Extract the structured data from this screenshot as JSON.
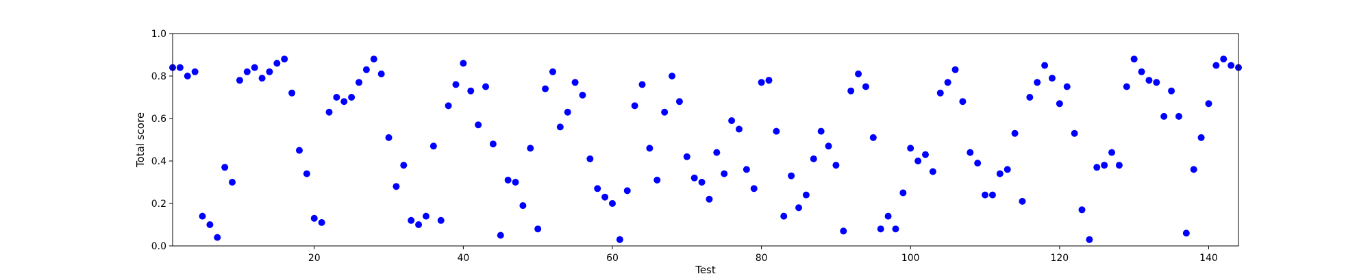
{
  "chart_data": {
    "type": "scatter",
    "title": "",
    "xlabel": "Test",
    "ylabel": "Total score",
    "xlim": [
      1,
      144
    ],
    "ylim": [
      0.0,
      1.0
    ],
    "xticks": [
      20,
      40,
      60,
      80,
      100,
      120,
      140
    ],
    "yticks": [
      0.0,
      0.2,
      0.4,
      0.6,
      0.8,
      1.0
    ],
    "xtick_labels": [
      "20",
      "40",
      "60",
      "80",
      "100",
      "120",
      "140"
    ],
    "ytick_labels": [
      "0.0",
      "0.2",
      "0.4",
      "0.6",
      "0.8",
      "1.0"
    ],
    "grid": false,
    "marker_color": "#0000ff",
    "x": [
      1,
      2,
      3,
      4,
      5,
      6,
      7,
      8,
      9,
      10,
      11,
      12,
      13,
      14,
      15,
      16,
      17,
      18,
      19,
      20,
      21,
      22,
      23,
      24,
      25,
      26,
      27,
      28,
      29,
      30,
      31,
      32,
      33,
      34,
      35,
      36,
      37,
      38,
      39,
      40,
      41,
      42,
      43,
      44,
      45,
      46,
      47,
      48,
      49,
      50,
      51,
      52,
      53,
      54,
      55,
      56,
      57,
      58,
      59,
      60,
      61,
      62,
      63,
      64,
      65,
      66,
      67,
      68,
      69,
      70,
      71,
      72,
      73,
      74,
      75,
      76,
      77,
      78,
      79,
      80,
      81,
      82,
      83,
      84,
      85,
      86,
      87,
      88,
      89,
      90,
      91,
      92,
      93,
      94,
      95,
      96,
      97,
      98,
      99,
      100,
      101,
      102,
      103,
      104,
      105,
      106,
      107,
      108,
      109,
      110,
      111,
      112,
      113,
      114,
      115,
      116,
      117,
      118,
      119,
      120,
      121,
      122,
      123,
      124,
      125,
      126,
      127,
      128,
      129,
      130,
      131,
      132,
      133,
      134,
      135,
      136,
      137,
      138,
      139,
      140,
      141,
      142,
      143,
      144
    ],
    "y": [
      0.84,
      0.84,
      0.8,
      0.82,
      0.14,
      0.1,
      0.04,
      0.37,
      0.3,
      0.78,
      0.82,
      0.84,
      0.79,
      0.82,
      0.86,
      0.88,
      0.72,
      0.45,
      0.34,
      0.13,
      0.11,
      0.63,
      0.7,
      0.68,
      0.7,
      0.77,
      0.83,
      0.88,
      0.81,
      0.51,
      0.28,
      0.38,
      0.12,
      0.1,
      0.14,
      0.47,
      0.12,
      0.66,
      0.76,
      0.86,
      0.73,
      0.57,
      0.75,
      0.48,
      0.05,
      0.31,
      0.3,
      0.19,
      0.46,
      0.08,
      0.74,
      0.82,
      0.56,
      0.63,
      0.77,
      0.71,
      0.41,
      0.27,
      0.23,
      0.2,
      0.03,
      0.26,
      0.66,
      0.76,
      0.46,
      0.31,
      0.63,
      0.8,
      0.68,
      0.42,
      0.32,
      0.3,
      0.22,
      0.44,
      0.34,
      0.59,
      0.55,
      0.36,
      0.27,
      0.77,
      0.78,
      0.54,
      0.14,
      0.33,
      0.18,
      0.24,
      0.41,
      0.54,
      0.47,
      0.38,
      0.07,
      0.73,
      0.81,
      0.75,
      0.51,
      0.08,
      0.14,
      0.08,
      0.25,
      0.46,
      0.4,
      0.43,
      0.35,
      0.72,
      0.77,
      0.83,
      0.68,
      0.44,
      0.39,
      0.24,
      0.24,
      0.34,
      0.36,
      0.53,
      0.21,
      0.7,
      0.77,
      0.85,
      0.79,
      0.67,
      0.75,
      0.53,
      0.17,
      0.03,
      0.37,
      0.38,
      0.44,
      0.38,
      0.75,
      0.88,
      0.82,
      0.78,
      0.77,
      0.61,
      0.73,
      0.61,
      0.06,
      0.36,
      0.51,
      0.67,
      0.85,
      0.88,
      0.85,
      0.84
    ]
  }
}
